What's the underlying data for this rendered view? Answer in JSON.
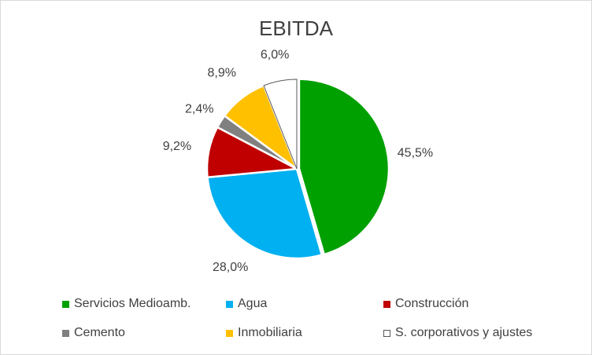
{
  "chart_data": {
    "type": "pie",
    "title": "EBITDA",
    "start_angle_deg": 0,
    "direction": "clockwise",
    "legend_position": "bottom",
    "slices": [
      {
        "label": "Servicios Medioamb.",
        "value": 45.5,
        "value_label": "45,5%",
        "color": "#00a000"
      },
      {
        "label": "Agua",
        "value": 28.0,
        "value_label": "28,0%",
        "color": "#00b0f0"
      },
      {
        "label": "Construcción",
        "value": 9.2,
        "value_label": "9,2%",
        "color": "#c00000"
      },
      {
        "label": "Cemento",
        "value": 2.4,
        "value_label": "2,4%",
        "color": "#808080"
      },
      {
        "label": "Inmobiliaria",
        "value": 8.9,
        "value_label": "8,9%",
        "color": "#ffc000"
      },
      {
        "label": "S. corporativos y ajustes",
        "value": 6.0,
        "value_label": "6,0%",
        "color": "#ffffff"
      }
    ]
  }
}
